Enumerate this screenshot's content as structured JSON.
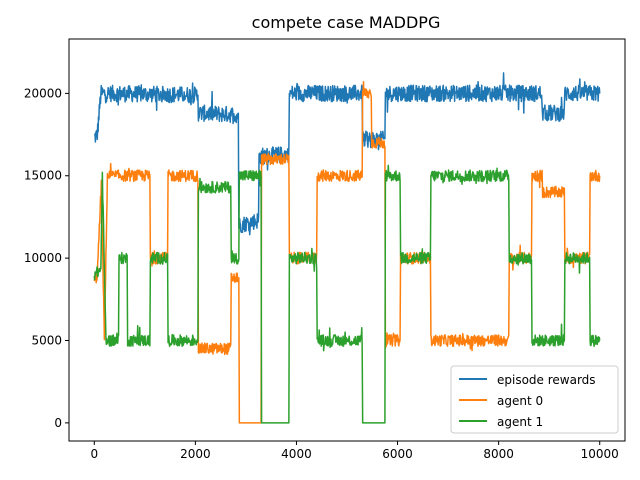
{
  "chart_data": {
    "type": "line",
    "title": "compete case MADDPG",
    "xlabel": "",
    "ylabel": "",
    "xlim": [
      -500,
      10500
    ],
    "ylim": [
      -1100,
      23300
    ],
    "xticks": [
      0,
      2000,
      4000,
      6000,
      8000,
      10000
    ],
    "xtick_labels": [
      "0",
      "2000",
      "4000",
      "6000",
      "8000",
      "10000"
    ],
    "yticks": [
      0,
      5000,
      10000,
      15000,
      20000
    ],
    "ytick_labels": [
      "0",
      "5000",
      "10000",
      "15000",
      "20000"
    ],
    "grid": false,
    "legend_position": "lower-right",
    "series": [
      {
        "name": "episode rewards",
        "color": "#1f77b4",
        "noise": 500,
        "segments": [
          [
            0,
            17300
          ],
          [
            60,
            17500
          ],
          [
            130,
            20000
          ],
          [
            2050,
            19900
          ],
          [
            2060,
            18800
          ],
          [
            2850,
            18700
          ],
          [
            2860,
            12000
          ],
          [
            3250,
            12300
          ],
          [
            3260,
            16200
          ],
          [
            3850,
            16300
          ],
          [
            3860,
            20000
          ],
          [
            5300,
            20000
          ],
          [
            5310,
            17200
          ],
          [
            5750,
            17200
          ],
          [
            5760,
            20000
          ],
          [
            8850,
            20000
          ],
          [
            8860,
            18800
          ],
          [
            9300,
            18800
          ],
          [
            9310,
            20000
          ],
          [
            10000,
            20000
          ]
        ]
      },
      {
        "name": "agent 0",
        "color": "#ff7f0e",
        "noise": 350,
        "segments": [
          [
            0,
            8500
          ],
          [
            60,
            9000
          ],
          [
            140,
            14500
          ],
          [
            200,
            5000
          ],
          [
            260,
            15000
          ],
          [
            1100,
            15000
          ],
          [
            1110,
            10000
          ],
          [
            1450,
            10000
          ],
          [
            1460,
            15000
          ],
          [
            2050,
            15000
          ],
          [
            2060,
            4500
          ],
          [
            2700,
            4500
          ],
          [
            2710,
            8800
          ],
          [
            2860,
            8800
          ],
          [
            2870,
            0
          ],
          [
            3300,
            0
          ],
          [
            3310,
            16000
          ],
          [
            3850,
            16000
          ],
          [
            3860,
            10000
          ],
          [
            4400,
            10000
          ],
          [
            4410,
            15000
          ],
          [
            5300,
            15000
          ],
          [
            5310,
            20000
          ],
          [
            5480,
            20000
          ],
          [
            5490,
            17000
          ],
          [
            5750,
            17000
          ],
          [
            5760,
            5000
          ],
          [
            6050,
            5000
          ],
          [
            6060,
            10000
          ],
          [
            6650,
            10000
          ],
          [
            6660,
            5000
          ],
          [
            8200,
            5000
          ],
          [
            8210,
            10000
          ],
          [
            8650,
            10000
          ],
          [
            8660,
            15000
          ],
          [
            8860,
            15000
          ],
          [
            8870,
            14000
          ],
          [
            9300,
            14000
          ],
          [
            9310,
            10000
          ],
          [
            9800,
            10000
          ],
          [
            9810,
            15000
          ],
          [
            10000,
            15000
          ]
        ]
      },
      {
        "name": "agent 1",
        "color": "#2ca02c",
        "noise": 350,
        "segments": [
          [
            0,
            9000
          ],
          [
            130,
            9300
          ],
          [
            160,
            15000
          ],
          [
            230,
            5000
          ],
          [
            480,
            5000
          ],
          [
            490,
            10000
          ],
          [
            650,
            10000
          ],
          [
            660,
            5000
          ],
          [
            1100,
            5000
          ],
          [
            1110,
            10000
          ],
          [
            1450,
            10000
          ],
          [
            1460,
            5000
          ],
          [
            2050,
            5000
          ],
          [
            2060,
            14300
          ],
          [
            2700,
            14300
          ],
          [
            2710,
            10000
          ],
          [
            2860,
            10000
          ],
          [
            2870,
            15000
          ],
          [
            3300,
            15000
          ],
          [
            3310,
            0
          ],
          [
            3850,
            0
          ],
          [
            3860,
            10000
          ],
          [
            4400,
            10000
          ],
          [
            4410,
            5000
          ],
          [
            5300,
            5000
          ],
          [
            5310,
            0
          ],
          [
            5750,
            0
          ],
          [
            5760,
            15000
          ],
          [
            6050,
            15000
          ],
          [
            6060,
            10000
          ],
          [
            6650,
            10000
          ],
          [
            6660,
            15000
          ],
          [
            8200,
            15000
          ],
          [
            8210,
            10000
          ],
          [
            8650,
            10000
          ],
          [
            8660,
            5000
          ],
          [
            9300,
            5000
          ],
          [
            9310,
            10000
          ],
          [
            9800,
            10000
          ],
          [
            9810,
            5000
          ],
          [
            10000,
            5000
          ]
        ]
      }
    ]
  }
}
